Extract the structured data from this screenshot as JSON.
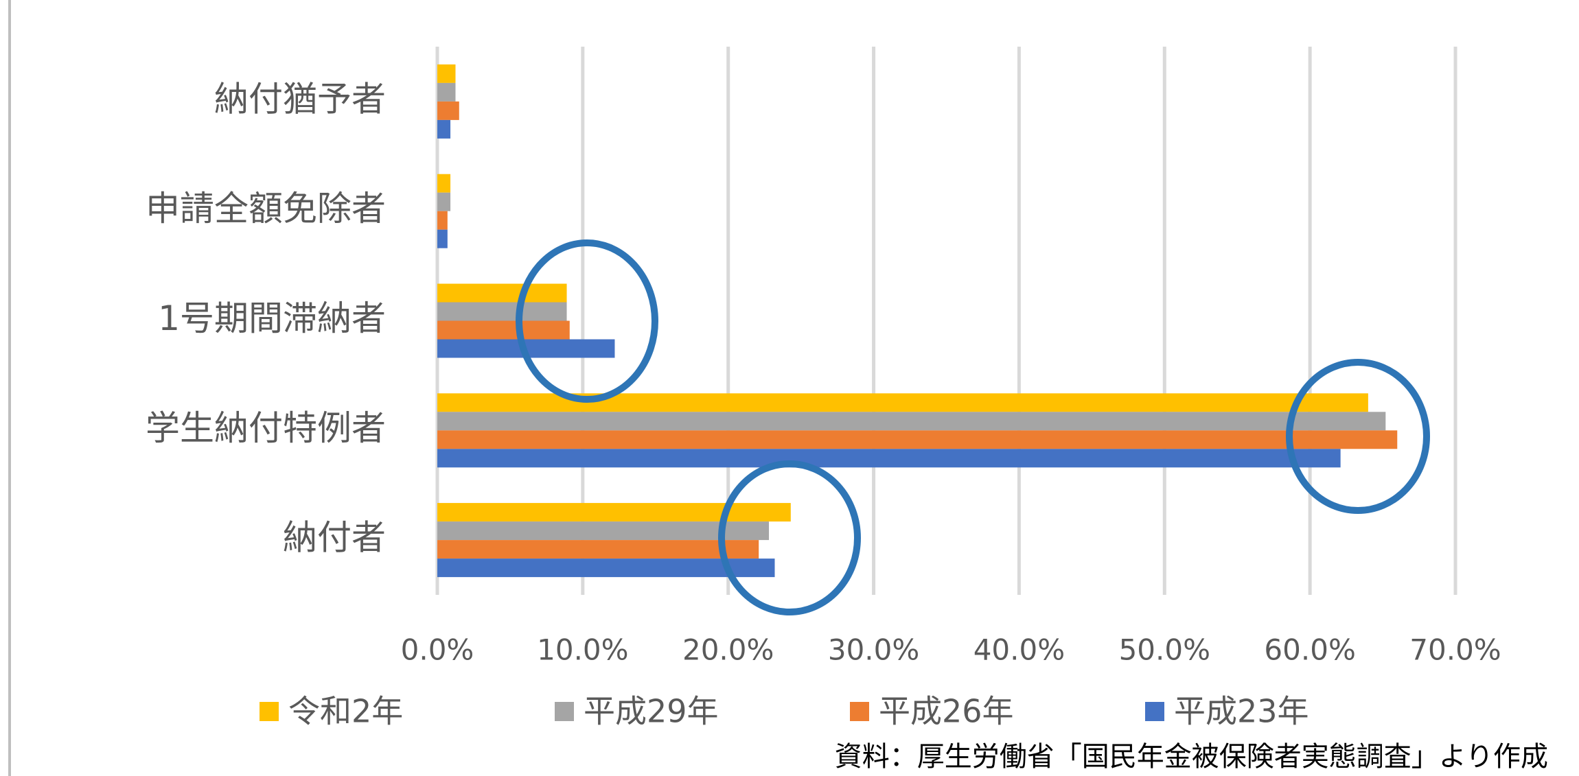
{
  "chart_data": {
    "type": "hbar",
    "categories": [
      "納付者",
      "学生納付特例者",
      "1号期間滞納者",
      "申請全額免除者",
      "納付猶予者"
    ],
    "series": [
      {
        "name": "令和2年",
        "color": "#FFC000",
        "values": [
          24.3,
          64.0,
          8.9,
          0.9,
          1.25
        ]
      },
      {
        "name": "平成29年",
        "color": "#A5A5A5",
        "values": [
          22.8,
          65.2,
          8.9,
          0.9,
          1.25
        ]
      },
      {
        "name": "平成26年",
        "color": "#ED7D31",
        "values": [
          22.1,
          66.0,
          9.1,
          0.7,
          1.5
        ]
      },
      {
        "name": "平成23年",
        "color": "#4472C4",
        "values": [
          23.2,
          62.1,
          12.2,
          0.7,
          0.9
        ]
      }
    ],
    "xlim": [
      0,
      70
    ],
    "xticks": [
      {
        "value": 0,
        "label": "0.0%"
      },
      {
        "value": 10,
        "label": "10.0%"
      },
      {
        "value": 20,
        "label": "20.0%"
      },
      {
        "value": 30,
        "label": "30.0%"
      },
      {
        "value": 40,
        "label": "40.0%"
      },
      {
        "value": 50,
        "label": "50.0%"
      },
      {
        "value": 60,
        "label": "60.0%"
      },
      {
        "value": 70,
        "label": "70.0%"
      }
    ],
    "grid": true,
    "legend": "bottom",
    "source": "資料：厚生労働省「国民年金被保険者実態調査」より作成"
  }
}
